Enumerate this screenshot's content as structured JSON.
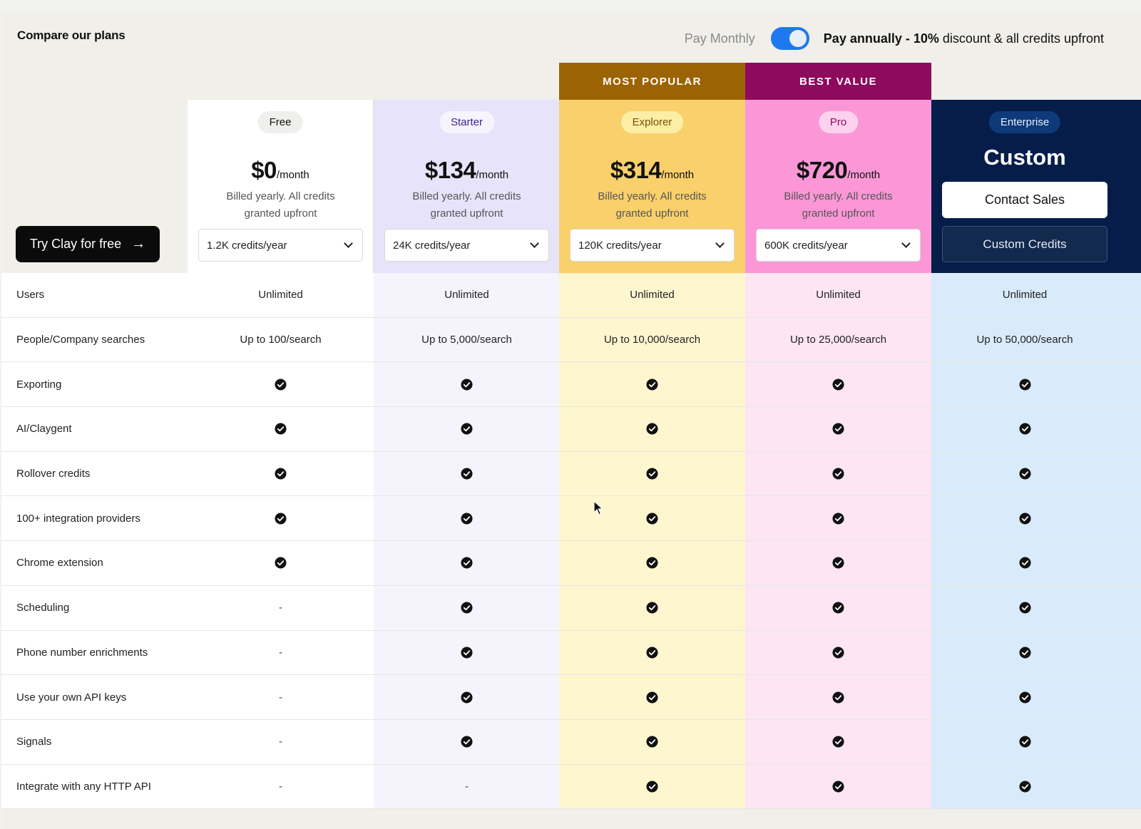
{
  "header": {
    "title": "Compare our plans",
    "pay_monthly": "Pay Monthly",
    "pay_annually_prefix": "Pay annually - 10%",
    "pay_annually_suffix": " discount & all credits upfront",
    "toggle_on": true
  },
  "try_button": {
    "label": "Try Clay for free"
  },
  "plans": [
    {
      "name": "Free",
      "price": "$0",
      "per": "/month",
      "billed": "Billed yearly. All credits granted upfront",
      "credits": "1.2K credits/year"
    },
    {
      "name": "Starter",
      "price": "$134",
      "per": "/month",
      "billed": "Billed yearly. All credits granted upfront",
      "credits": "24K credits/year"
    },
    {
      "name": "Explorer",
      "price": "$314",
      "per": "/month",
      "billed": "Billed yearly. All credits granted upfront",
      "credits": "120K credits/year",
      "tag": "MOST POPULAR"
    },
    {
      "name": "Pro",
      "price": "$720",
      "per": "/month",
      "billed": "Billed yearly. All credits granted upfront",
      "credits": "600K credits/year",
      "tag": "BEST VALUE"
    },
    {
      "name": "Enterprise",
      "price": "Custom",
      "contact": "Contact Sales",
      "custom_credits": "Custom Credits"
    }
  ],
  "colors": {
    "free_bg": "#ffffff",
    "starter_bg": "#e7e3fb",
    "explorer_bg": "#f9d06b",
    "pro_bg": "#fb97d6",
    "enterprise_bg": "#061d4a",
    "most_popular_bar": "#9c6304",
    "best_value_bar": "#8e0a5d",
    "starter_row": "#f5f4fd",
    "explorer_row": "#fdf6cf",
    "pro_row": "#fde5f4",
    "enterprise_row": "#d9eafa"
  },
  "features": [
    {
      "name": "Users",
      "values": [
        "Unlimited",
        "Unlimited",
        "Unlimited",
        "Unlimited",
        "Unlimited"
      ]
    },
    {
      "name": "People/Company searches",
      "values": [
        "Up to 100/search",
        "Up to 5,000/search",
        "Up to 10,000/search",
        "Up to 25,000/search",
        "Up to 50,000/search"
      ]
    },
    {
      "name": "Exporting",
      "values": [
        "check",
        "check",
        "check",
        "check",
        "check"
      ]
    },
    {
      "name": "AI/Claygent",
      "values": [
        "check",
        "check",
        "check",
        "check",
        "check"
      ]
    },
    {
      "name": "Rollover credits",
      "values": [
        "check",
        "check",
        "check",
        "check",
        "check"
      ]
    },
    {
      "name": "100+ integration providers",
      "values": [
        "check",
        "check",
        "check",
        "check",
        "check"
      ]
    },
    {
      "name": "Chrome extension",
      "values": [
        "check",
        "check",
        "check",
        "check",
        "check"
      ]
    },
    {
      "name": "Scheduling",
      "values": [
        "-",
        "check",
        "check",
        "check",
        "check"
      ]
    },
    {
      "name": "Phone number enrichments",
      "values": [
        "-",
        "check",
        "check",
        "check",
        "check"
      ]
    },
    {
      "name": "Use your own API keys",
      "values": [
        "-",
        "check",
        "check",
        "check",
        "check"
      ]
    },
    {
      "name": "Signals",
      "values": [
        "-",
        "check",
        "check",
        "check",
        "check"
      ]
    },
    {
      "name": "Integrate with any HTTP API",
      "values": [
        "-",
        "-",
        "check",
        "check",
        "check"
      ]
    }
  ]
}
